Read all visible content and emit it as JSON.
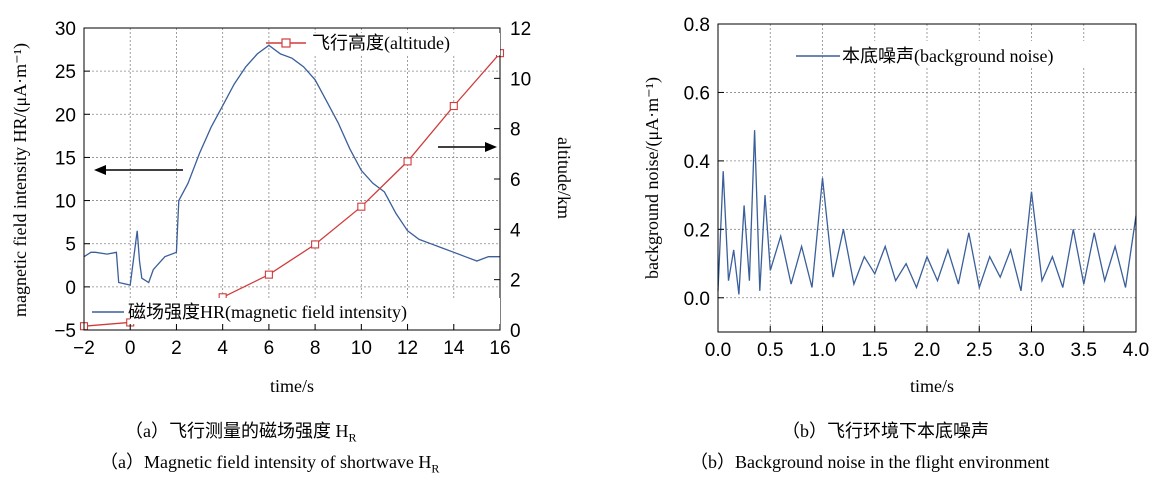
{
  "chart_data": [
    {
      "type": "line",
      "panel": "a",
      "caption_cn": "（a）飞行测量的磁场强度 H",
      "caption_en": "（a）Magnetic field intensity of shortwave H",
      "caption_sub": "R",
      "xlabel": "time/s",
      "ylabel": "magnetic field intensity HR/(μA·m⁻¹)",
      "ylabel2": "altitude/km",
      "xlim": [
        -2,
        16
      ],
      "ylim": [
        -5,
        30
      ],
      "y2lim": [
        0,
        12
      ],
      "x_ticks": [
        "−2",
        "0",
        "2",
        "4",
        "6",
        "8",
        "10",
        "12",
        "14",
        "16"
      ],
      "y_ticks": [
        "−5",
        "0",
        "5",
        "10",
        "15",
        "20",
        "25",
        "30"
      ],
      "y2_ticks": [
        "0",
        "2",
        "4",
        "6",
        "8",
        "10",
        "12"
      ],
      "grid": true,
      "series": [
        {
          "name": "磁场强度HR(magnetic field intensity)",
          "axis": "left",
          "color": "#3a5f9a",
          "x": [
            -2,
            -1.7,
            -1.5,
            -1.0,
            -0.6,
            -0.5,
            0.0,
            0.3,
            0.4,
            0.5,
            0.8,
            1.0,
            1.5,
            2.0,
            2.1,
            2.5,
            3.0,
            3.5,
            4.0,
            4.5,
            5.0,
            5.5,
            6.0,
            6.5,
            7.0,
            7.5,
            8.0,
            8.5,
            9.0,
            9.5,
            10.0,
            10.5,
            11.0,
            11.5,
            12.0,
            12.5,
            13.0,
            13.5,
            14.0,
            14.5,
            15.0,
            15.5,
            16.0
          ],
          "y": [
            3.5,
            4.0,
            4.0,
            3.8,
            4.0,
            0.5,
            0.2,
            6.5,
            3.0,
            1.0,
            0.5,
            2.0,
            3.5,
            4.0,
            10.0,
            12.0,
            15.5,
            18.5,
            21.0,
            23.5,
            25.5,
            27.0,
            28.0,
            27.0,
            26.5,
            25.5,
            24.0,
            21.5,
            19.0,
            16.0,
            13.5,
            12.0,
            11.0,
            8.5,
            6.5,
            5.5,
            5.0,
            4.5,
            4.0,
            3.5,
            3.0,
            3.5,
            3.5
          ]
        },
        {
          "name": "飞行高度(altitude)",
          "axis": "right",
          "color": "#d03c3c",
          "x": [
            -2,
            0,
            2,
            4,
            6,
            8,
            10,
            12,
            14,
            16
          ],
          "y": [
            0.15,
            0.3,
            0.6,
            1.3,
            2.2,
            3.4,
            4.9,
            6.7,
            8.9,
            11.0
          ]
        }
      ],
      "annotations": [
        "arrow left → HR axis",
        "arrow right → altitude axis"
      ]
    },
    {
      "type": "line",
      "panel": "b",
      "caption_cn": "（b）飞行环境下本底噪声",
      "caption_en": "（b）Background noise in the flight environment",
      "xlabel": "time/s",
      "ylabel": "background noise/(μA·m⁻¹)",
      "xlim": [
        0,
        4.0
      ],
      "ylim": [
        -0.1,
        0.8
      ],
      "x_ticks": [
        "0.0",
        "0.5",
        "1.0",
        "1.5",
        "2.0",
        "2.5",
        "3.0",
        "3.5",
        "4.0"
      ],
      "y_ticks": [
        "0.0",
        "0.2",
        "0.4",
        "0.6",
        "0.8"
      ],
      "grid": true,
      "series": [
        {
          "name": "本底噪声(background noise)",
          "color": "#3a5f9a",
          "x": [
            0.0,
            0.05,
            0.1,
            0.15,
            0.2,
            0.25,
            0.3,
            0.35,
            0.4,
            0.45,
            0.5,
            0.6,
            0.7,
            0.8,
            0.9,
            1.0,
            1.1,
            1.2,
            1.3,
            1.4,
            1.5,
            1.6,
            1.7,
            1.8,
            1.9,
            2.0,
            2.1,
            2.2,
            2.3,
            2.4,
            2.5,
            2.6,
            2.7,
            2.8,
            2.9,
            3.0,
            3.1,
            3.2,
            3.3,
            3.4,
            3.5,
            3.6,
            3.7,
            3.8,
            3.9,
            4.0
          ],
          "y": [
            0.02,
            0.37,
            0.05,
            0.14,
            0.01,
            0.27,
            0.05,
            0.49,
            0.02,
            0.3,
            0.08,
            0.18,
            0.04,
            0.15,
            0.03,
            0.35,
            0.06,
            0.2,
            0.04,
            0.12,
            0.07,
            0.15,
            0.05,
            0.1,
            0.03,
            0.12,
            0.05,
            0.14,
            0.04,
            0.19,
            0.03,
            0.12,
            0.06,
            0.14,
            0.02,
            0.31,
            0.05,
            0.12,
            0.03,
            0.2,
            0.04,
            0.19,
            0.05,
            0.15,
            0.03,
            0.24
          ]
        }
      ]
    }
  ]
}
